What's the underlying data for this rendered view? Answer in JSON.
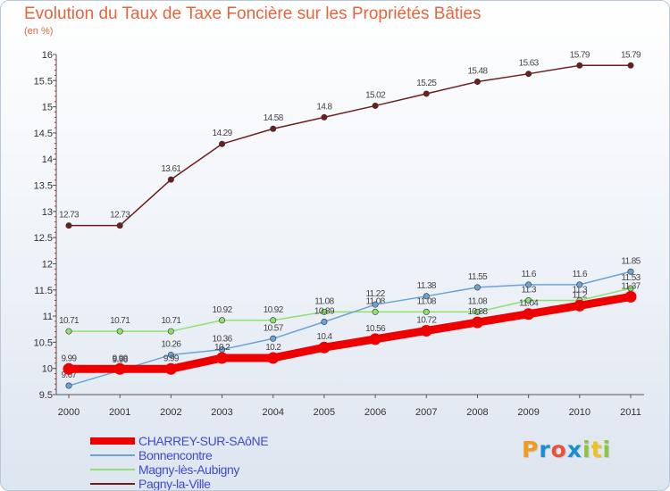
{
  "colors": {
    "title": "#e8643c",
    "legend_text": "#3f4ad0"
  },
  "logo": {
    "letters": [
      "P",
      "r",
      "o",
      "x",
      "i",
      "t",
      "i"
    ],
    "colors": [
      "#f29a1c",
      "#1a8fd0",
      "#e8523c",
      "#1a8fd0",
      "#8cc63f",
      "#f2c21c",
      "#8cc63f"
    ]
  },
  "chart_data": {
    "type": "line",
    "title": "Evolution du Taux de Taxe Foncière sur les Propriétés Bâties",
    "ylabel": "(en %)",
    "xlabel": "",
    "categories": [
      "2000",
      "2001",
      "2002",
      "2003",
      "2004",
      "2005",
      "2006",
      "2007",
      "2008",
      "2009",
      "2010",
      "2011"
    ],
    "ylim": [
      9.5,
      16
    ],
    "yticks": [
      "9.5",
      "10",
      "10.5",
      "11",
      "11.5",
      "12",
      "12.5",
      "13",
      "13.5",
      "14",
      "14.5",
      "15",
      "15.5",
      "16"
    ],
    "grid": false,
    "legend_position": "bottom-left",
    "series": [
      {
        "name": "Pagny-la-Ville",
        "color": "#6e1e1e",
        "weight": "thin",
        "values": [
          12.73,
          12.73,
          13.61,
          14.29,
          14.58,
          14.8,
          15.02,
          15.25,
          15.48,
          15.63,
          15.79,
          15.79
        ],
        "labels": [
          "12.73",
          "12.73",
          "13.61",
          "14.29",
          "14.58",
          "14.8",
          "15.02",
          "15.25",
          "15.48",
          "15.63",
          "15.79",
          "15.79"
        ]
      },
      {
        "name": "Magny-lès-Aubigny",
        "color": "#90e070",
        "weight": "thin",
        "values": [
          10.71,
          10.71,
          10.71,
          10.92,
          10.92,
          11.08,
          11.08,
          11.08,
          11.08,
          11.3,
          11.3,
          11.53
        ],
        "labels": [
          "10.71",
          "10.71",
          "10.71",
          "10.92",
          "10.92",
          "11.08",
          "11.08",
          "11.08",
          "11.08",
          "11.3",
          "11.3",
          "11.53"
        ]
      },
      {
        "name": "Bonnencontre",
        "color": "#6ba3d6",
        "weight": "thin",
        "values": [
          9.67,
          9.96,
          10.26,
          10.36,
          10.57,
          10.89,
          11.22,
          11.38,
          11.55,
          11.6,
          11.6,
          11.85
        ],
        "labels": [
          "9.67",
          "9.96",
          "10.26",
          "10.36",
          "10.57",
          "10.89",
          "11.22",
          "11.38",
          "11.55",
          "11.6",
          "11.6",
          "11.85"
        ]
      },
      {
        "name": "CHARREY-SUR-SAôNE",
        "color": "#ee0000",
        "weight": "thick",
        "values": [
          9.99,
          9.99,
          9.99,
          10.2,
          10.2,
          10.4,
          10.56,
          10.72,
          10.88,
          11.04,
          11.2,
          11.37
        ],
        "labels": [
          "9.99",
          "9.99",
          "9.99",
          "10.2",
          "10.2",
          "10.4",
          "10.56",
          "10.72",
          "10.88",
          "11.04",
          "11.2",
          "11.37"
        ]
      }
    ],
    "legend_order": [
      "CHARREY-SUR-SAôNE",
      "Bonnencontre",
      "Magny-lès-Aubigny",
      "Pagny-la-Ville"
    ]
  }
}
